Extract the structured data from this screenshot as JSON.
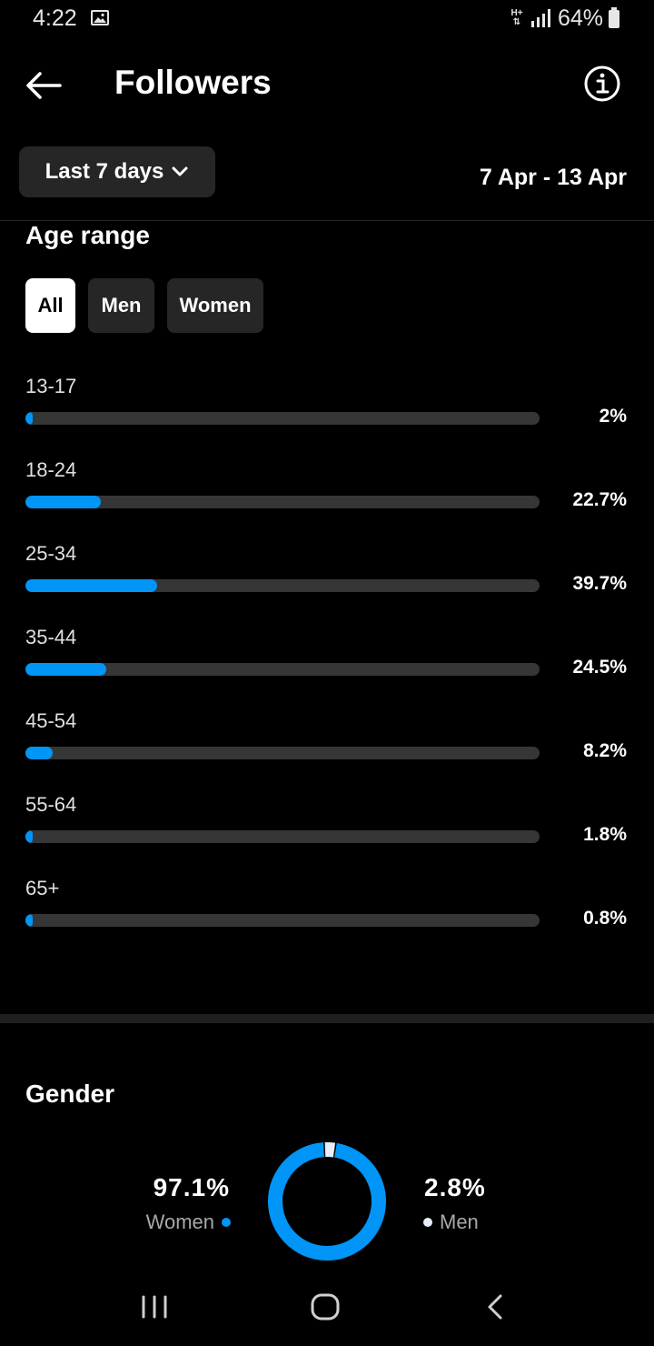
{
  "status_bar": {
    "time": "4:22",
    "network": "H+",
    "battery": "64%"
  },
  "header": {
    "title": "Followers"
  },
  "filters": {
    "range_label": "Last 7 days",
    "date_range": "7 Apr - 13 Apr"
  },
  "age_section": {
    "title": "Age range",
    "tabs": [
      {
        "label": "All",
        "active": true
      },
      {
        "label": "Men",
        "active": false
      },
      {
        "label": "Women",
        "active": false
      }
    ]
  },
  "chart_data": [
    {
      "type": "bar",
      "title": "Age range",
      "categories": [
        "13-17",
        "18-24",
        "25-34",
        "35-44",
        "45-54",
        "55-64",
        "65+"
      ],
      "values": [
        2,
        22.7,
        39.7,
        24.5,
        8.2,
        1.8,
        0.8
      ],
      "value_labels": [
        "2%",
        "22.7%",
        "39.7%",
        "24.5%",
        "8.2%",
        "1.8%",
        "0.8%"
      ],
      "ylim": [
        0,
        100
      ],
      "color": "#0095f6"
    },
    {
      "type": "pie",
      "title": "Gender",
      "categories": [
        "Women",
        "Men"
      ],
      "values": [
        97.1,
        2.8
      ],
      "value_labels": [
        "97.1%",
        "2.8%"
      ],
      "colors": [
        "#0095f6",
        "#e8eef9"
      ]
    }
  ],
  "icons": {
    "back": "arrow-left-icon",
    "info": "info-circle-icon",
    "dropdown": "chevron-down-icon"
  }
}
